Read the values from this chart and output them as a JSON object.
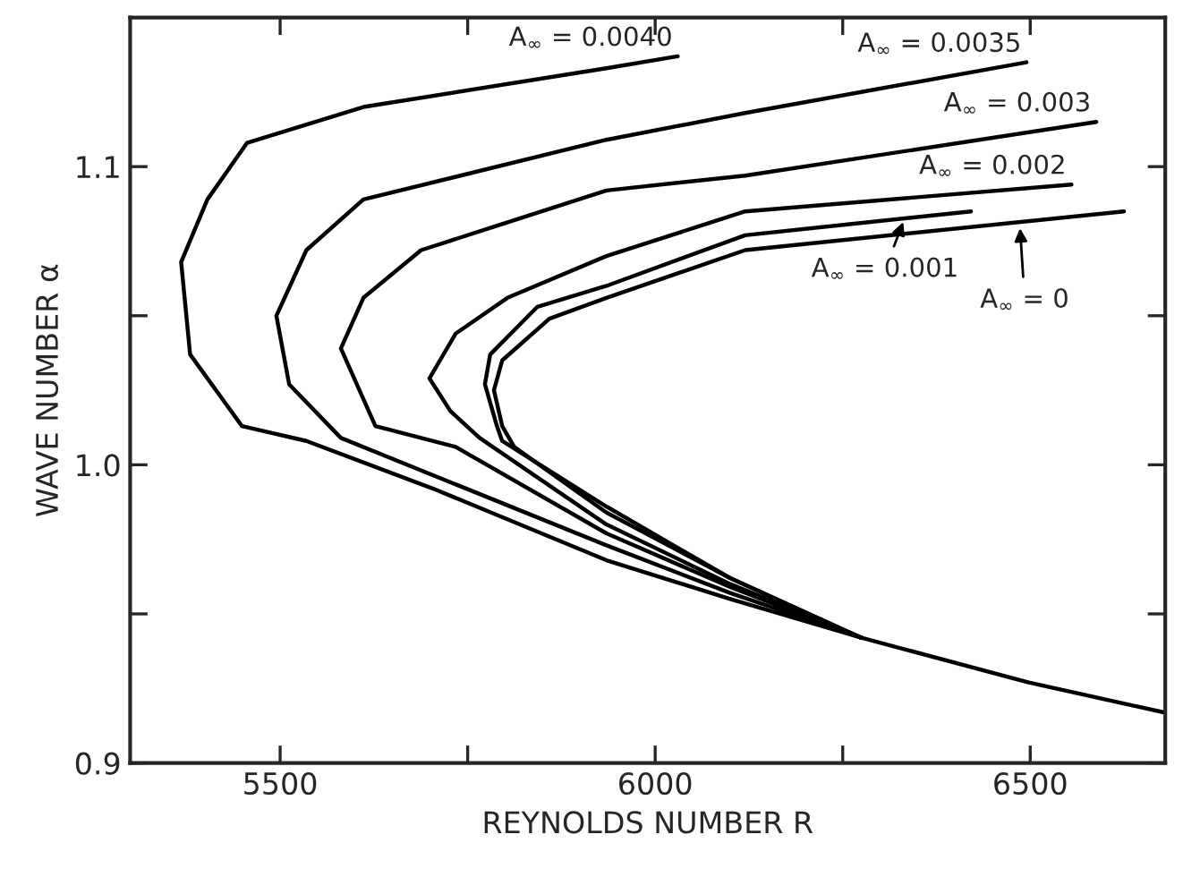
{
  "chart_data": {
    "type": "line",
    "xlabel": "REYNOLDS NUMBER R",
    "ylabel": "WAVE NUMBER α",
    "xlim": [
      5300,
      6680
    ],
    "ylim": [
      0.9,
      1.15
    ],
    "xticks": [
      5500,
      {
        "value": 5750,
        "label": null
      },
      6000,
      {
        "value": 6250,
        "label": null
      },
      6500
    ],
    "yticks": [
      0.9,
      {
        "value": 0.95,
        "label": null
      },
      {
        "value": 1.0,
        "label": "1.0"
      },
      {
        "value": 1.05,
        "label": null
      },
      1.1
    ],
    "grid": false,
    "marker": "none",
    "line_style": "solid",
    "series": [
      {
        "color": "#000000",
        "x": [
          6030,
          5935,
          5611,
          5456,
          5403,
          5368,
          5380,
          5449,
          5535,
          5704,
          5935,
          6100,
          6275
        ],
        "values": [
          1.137,
          1.133,
          1.12,
          1.108,
          1.089,
          1.068,
          1.037,
          1.013,
          1.008,
          0.992,
          0.968,
          0.955,
          0.942
        ]
      },
      {
        "color": "#000000",
        "x": [
          6495,
          6120,
          5935,
          5611,
          5535,
          5495,
          5512,
          5581,
          5935,
          6100,
          6275
        ],
        "values": [
          1.135,
          1.118,
          1.109,
          1.089,
          1.072,
          1.05,
          1.027,
          1.009,
          0.973,
          0.957,
          0.942
        ]
      },
      {
        "color": "#000000",
        "x": [
          6588,
          6120,
          5935,
          5688,
          5611,
          5581,
          5627,
          5734,
          5935,
          6100,
          6275
        ],
        "values": [
          1.115,
          1.097,
          1.092,
          1.072,
          1.056,
          1.039,
          1.013,
          1.006,
          0.977,
          0.959,
          0.942
        ]
      },
      {
        "color": "#000000",
        "x": [
          6555,
          6120,
          5935,
          5803,
          5734,
          5699,
          5727,
          5766,
          5935,
          6100,
          6275
        ],
        "values": [
          1.094,
          1.085,
          1.07,
          1.056,
          1.044,
          1.029,
          1.018,
          1.009,
          0.98,
          0.96,
          0.942
        ]
      },
      {
        "color": "#000000",
        "x": [
          6421,
          6120,
          5935,
          5843,
          5780,
          5773,
          5789,
          5796,
          5935,
          6100,
          6275
        ],
        "values": [
          1.085,
          1.077,
          1.06,
          1.053,
          1.037,
          1.027,
          1.013,
          1.008,
          0.986,
          0.962,
          0.942
        ]
      },
      {
        "color": "#000000",
        "x": [
          6625,
          6120,
          5935,
          5859,
          5796,
          5785,
          5796,
          5812,
          5935,
          6100,
          6275,
          6498,
          6678
        ],
        "values": [
          1.085,
          1.072,
          1.056,
          1.049,
          1.035,
          1.025,
          1.013,
          1.006,
          0.984,
          0.962,
          0.942,
          0.927,
          0.917
        ]
      }
    ],
    "annotations": [
      {
        "text": "A$_{∞}$ = 0.0040",
        "x": 6030,
        "y": 1.137
      },
      {
        "text": "A$_{∞}$ = 0.0035",
        "x": 6495,
        "y": 1.135
      },
      {
        "text": "A$_{∞}$ = 0.003",
        "x": 6588,
        "y": 1.115
      },
      {
        "text": "A$_{∞}$ = 0.002",
        "x": 6555,
        "y": 1.094
      },
      {
        "text": "A$_{∞}$ = 0.001",
        "x": 6333,
        "y": 1.083
      },
      {
        "text": "A$_{∞}$ = 0",
        "x": 6486,
        "y": 1.081
      }
    ]
  }
}
